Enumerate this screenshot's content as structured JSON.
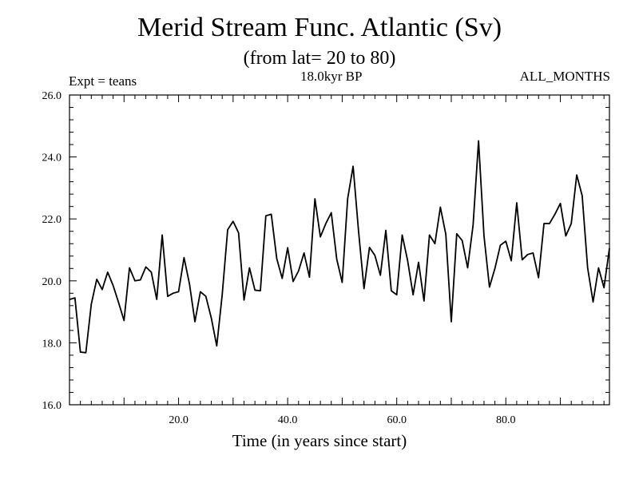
{
  "chart_data": {
    "type": "line",
    "title": "Merid Stream Func. Atlantic (Sv)",
    "subtitle": "(from lat= 20 to 80)",
    "annotation_left": "Expt = teans",
    "annotation_center": "18.0kyr BP",
    "annotation_right": "ALL_MONTHS",
    "xlabel": "Time (in years since start)",
    "ylabel": "",
    "xlim": [
      0,
      99
    ],
    "ylim": [
      16,
      26
    ],
    "xticks": [
      20,
      40,
      60,
      80
    ],
    "xtick_labels": [
      "20.0",
      "40.0",
      "60.0",
      "80.0"
    ],
    "yticks": [
      16,
      18,
      20,
      22,
      24,
      26
    ],
    "ytick_labels": [
      "16.0",
      "18.0",
      "20.0",
      "22.0",
      "24.0",
      "26.0"
    ],
    "x": [
      0,
      1,
      2,
      3,
      4,
      5,
      6,
      7,
      8,
      9,
      10,
      11,
      12,
      13,
      14,
      15,
      16,
      17,
      18,
      19,
      20,
      21,
      22,
      23,
      24,
      25,
      26,
      27,
      28,
      29,
      30,
      31,
      32,
      33,
      34,
      35,
      36,
      37,
      38,
      39,
      40,
      41,
      42,
      43,
      44,
      45,
      46,
      47,
      48,
      49,
      50,
      51,
      52,
      53,
      54,
      55,
      56,
      57,
      58,
      59,
      60,
      61,
      62,
      63,
      64,
      65,
      66,
      67,
      68,
      69,
      70,
      71,
      72,
      73,
      74,
      75,
      76,
      77,
      78,
      79,
      80,
      81,
      82,
      83,
      84,
      85,
      86,
      87,
      88,
      89,
      90,
      91,
      92,
      93,
      94,
      95,
      96,
      97,
      98,
      99
    ],
    "series": [
      {
        "name": "Merid Stream Func.",
        "values": [
          19.4,
          19.45,
          17.7,
          17.68,
          19.25,
          20.05,
          19.72,
          20.28,
          19.85,
          19.3,
          18.72,
          20.42,
          20.0,
          20.03,
          20.45,
          20.28,
          19.4,
          21.48,
          19.5,
          19.6,
          19.65,
          20.75,
          19.9,
          18.68,
          19.65,
          19.5,
          18.8,
          17.9,
          19.55,
          21.65,
          21.92,
          21.55,
          19.38,
          20.42,
          19.7,
          19.68,
          22.1,
          22.15,
          20.72,
          20.08,
          21.07,
          19.98,
          20.32,
          20.9,
          20.12,
          22.65,
          21.42,
          21.85,
          22.2,
          20.7,
          19.95,
          22.65,
          23.7,
          21.6,
          19.75,
          21.08,
          20.82,
          20.18,
          21.63,
          19.68,
          19.55,
          21.48,
          20.65,
          19.55,
          20.6,
          19.35,
          21.48,
          21.2,
          22.38,
          21.5,
          18.68,
          21.52,
          21.3,
          20.42,
          21.8,
          24.52,
          21.45,
          19.8,
          20.4,
          21.15,
          21.28,
          20.65,
          22.52,
          20.68,
          20.85,
          20.9,
          20.1,
          21.85,
          21.85,
          22.15,
          22.5,
          21.45,
          21.85,
          23.42,
          22.75,
          20.42,
          19.32,
          20.42,
          19.78,
          21.05
        ]
      }
    ]
  }
}
